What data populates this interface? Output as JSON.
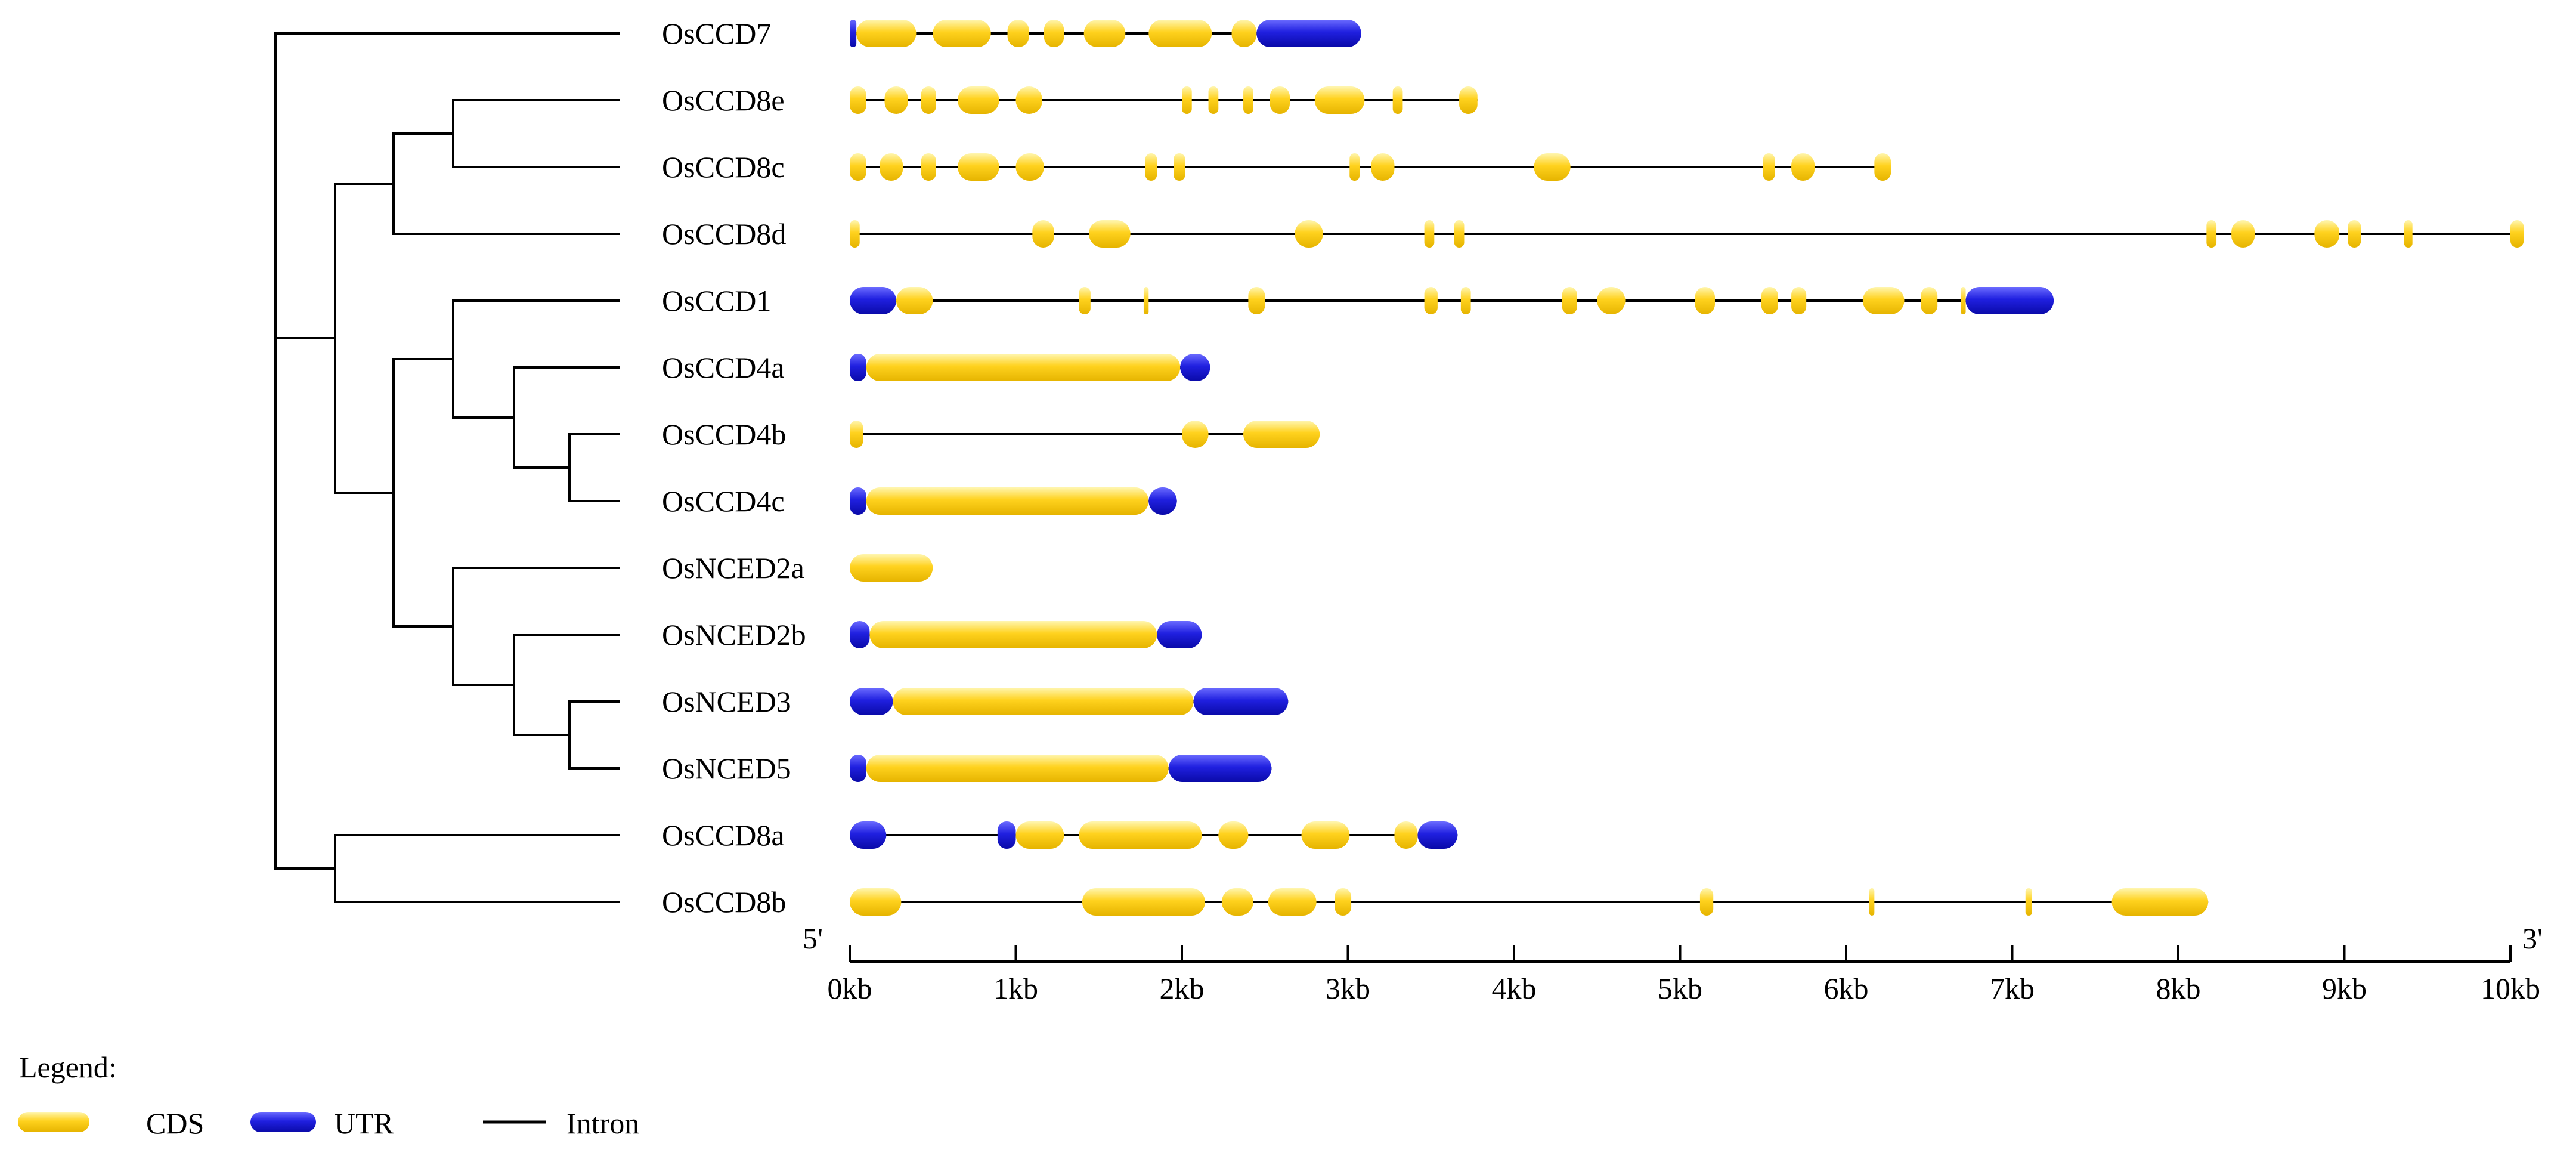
{
  "colors": {
    "cds": "#FFD21E",
    "cds_light": "#FFF6B0",
    "cds_dark": "#E6B400",
    "utr": "#2020E0",
    "utr_light": "#6B6BFF",
    "utr_dark": "#0A0AA8",
    "line": "#000000"
  },
  "axis": {
    "left_end": "5'",
    "right_end": "3'",
    "ticks": [
      "0kb",
      "1kb",
      "2kb",
      "3kb",
      "4kb",
      "5kb",
      "6kb",
      "7kb",
      "8kb",
      "9kb",
      "10kb"
    ],
    "max_kb": 10.1
  },
  "legend": {
    "title": "Legend:",
    "items": [
      {
        "label": "CDS",
        "kind": "cds"
      },
      {
        "label": "UTR",
        "kind": "utr"
      },
      {
        "label": "Intron",
        "kind": "intron"
      }
    ]
  },
  "genes": [
    {
      "name": "OsCCD7",
      "length": 3.08,
      "segments": [
        {
          "t": "u",
          "s": 0.0,
          "e": 0.04
        },
        {
          "t": "c",
          "s": 0.04,
          "e": 0.4
        },
        {
          "t": "c",
          "s": 0.5,
          "e": 0.85
        },
        {
          "t": "c",
          "s": 0.95,
          "e": 1.08
        },
        {
          "t": "c",
          "s": 1.17,
          "e": 1.29
        },
        {
          "t": "c",
          "s": 1.41,
          "e": 1.66
        },
        {
          "t": "c",
          "s": 1.8,
          "e": 2.18
        },
        {
          "t": "c",
          "s": 2.3,
          "e": 2.45
        },
        {
          "t": "u",
          "s": 2.45,
          "e": 3.08
        }
      ]
    },
    {
      "name": "OsCCD8e",
      "length": 3.78,
      "segments": [
        {
          "t": "c",
          "s": 0.0,
          "e": 0.1
        },
        {
          "t": "c",
          "s": 0.21,
          "e": 0.35
        },
        {
          "t": "c",
          "s": 0.43,
          "e": 0.52
        },
        {
          "t": "c",
          "s": 0.65,
          "e": 0.9
        },
        {
          "t": "c",
          "s": 1.0,
          "e": 1.16
        },
        {
          "t": "c",
          "s": 2.0,
          "e": 2.06
        },
        {
          "t": "c",
          "s": 2.16,
          "e": 2.22
        },
        {
          "t": "c",
          "s": 2.37,
          "e": 2.43
        },
        {
          "t": "c",
          "s": 2.53,
          "e": 2.65
        },
        {
          "t": "c",
          "s": 2.8,
          "e": 3.1
        },
        {
          "t": "c",
          "s": 3.27,
          "e": 3.33
        },
        {
          "t": "c",
          "s": 3.67,
          "e": 3.78
        }
      ]
    },
    {
      "name": "OsCCD8c",
      "length": 6.27,
      "segments": [
        {
          "t": "c",
          "s": 0.0,
          "e": 0.1
        },
        {
          "t": "c",
          "s": 0.18,
          "e": 0.32
        },
        {
          "t": "c",
          "s": 0.43,
          "e": 0.52
        },
        {
          "t": "c",
          "s": 0.65,
          "e": 0.9
        },
        {
          "t": "c",
          "s": 1.0,
          "e": 1.17
        },
        {
          "t": "c",
          "s": 1.78,
          "e": 1.85
        },
        {
          "t": "c",
          "s": 1.95,
          "e": 2.02
        },
        {
          "t": "c",
          "s": 3.01,
          "e": 3.07
        },
        {
          "t": "c",
          "s": 3.14,
          "e": 3.28
        },
        {
          "t": "c",
          "s": 4.12,
          "e": 4.34
        },
        {
          "t": "c",
          "s": 5.5,
          "e": 5.57
        },
        {
          "t": "c",
          "s": 5.67,
          "e": 5.81
        },
        {
          "t": "c",
          "s": 6.17,
          "e": 6.27
        }
      ]
    },
    {
      "name": "OsCCD8d",
      "length": 10.08,
      "segments": [
        {
          "t": "c",
          "s": 0.0,
          "e": 0.06
        },
        {
          "t": "c",
          "s": 1.1,
          "e": 1.23
        },
        {
          "t": "c",
          "s": 1.44,
          "e": 1.69
        },
        {
          "t": "c",
          "s": 2.68,
          "e": 2.85
        },
        {
          "t": "c",
          "s": 3.46,
          "e": 3.52
        },
        {
          "t": "c",
          "s": 3.64,
          "e": 3.7
        },
        {
          "t": "c",
          "s": 8.17,
          "e": 8.23
        },
        {
          "t": "c",
          "s": 8.32,
          "e": 8.46
        },
        {
          "t": "c",
          "s": 8.82,
          "e": 8.97
        },
        {
          "t": "c",
          "s": 9.02,
          "e": 9.1
        },
        {
          "t": "c",
          "s": 9.36,
          "e": 9.41
        },
        {
          "t": "c",
          "s": 10.0,
          "e": 10.08
        }
      ]
    },
    {
      "name": "OsCCD1",
      "length": 7.25,
      "segments": [
        {
          "t": "u",
          "s": 0.0,
          "e": 0.28
        },
        {
          "t": "c",
          "s": 0.28,
          "e": 0.5
        },
        {
          "t": "c",
          "s": 1.38,
          "e": 1.45
        },
        {
          "t": "c",
          "s": 1.77,
          "e": 1.8
        },
        {
          "t": "c",
          "s": 2.4,
          "e": 2.5
        },
        {
          "t": "c",
          "s": 3.46,
          "e": 3.54
        },
        {
          "t": "c",
          "s": 3.68,
          "e": 3.74
        },
        {
          "t": "c",
          "s": 4.29,
          "e": 4.38
        },
        {
          "t": "c",
          "s": 4.5,
          "e": 4.67
        },
        {
          "t": "c",
          "s": 5.09,
          "e": 5.21
        },
        {
          "t": "c",
          "s": 5.49,
          "e": 5.59
        },
        {
          "t": "c",
          "s": 5.67,
          "e": 5.76
        },
        {
          "t": "c",
          "s": 6.1,
          "e": 6.35
        },
        {
          "t": "c",
          "s": 6.45,
          "e": 6.55
        },
        {
          "t": "c",
          "s": 6.69,
          "e": 6.72
        },
        {
          "t": "u",
          "s": 6.72,
          "e": 7.25
        }
      ]
    },
    {
      "name": "OsCCD4a",
      "length": 2.17,
      "segments": [
        {
          "t": "u",
          "s": 0.0,
          "e": 0.1
        },
        {
          "t": "c",
          "s": 0.1,
          "e": 1.99
        },
        {
          "t": "u",
          "s": 1.99,
          "e": 2.17
        }
      ]
    },
    {
      "name": "OsCCD4b",
      "length": 2.83,
      "segments": [
        {
          "t": "c",
          "s": 0.0,
          "e": 0.08
        },
        {
          "t": "c",
          "s": 2.0,
          "e": 2.16
        },
        {
          "t": "c",
          "s": 2.37,
          "e": 2.83
        }
      ]
    },
    {
      "name": "OsCCD4c",
      "length": 1.97,
      "segments": [
        {
          "t": "u",
          "s": 0.0,
          "e": 0.1
        },
        {
          "t": "c",
          "s": 0.1,
          "e": 1.8
        },
        {
          "t": "u",
          "s": 1.8,
          "e": 1.97
        }
      ]
    },
    {
      "name": "OsNCED2a",
      "length": 0.5,
      "segments": [
        {
          "t": "c",
          "s": 0.0,
          "e": 0.5
        }
      ]
    },
    {
      "name": "OsNCED2b",
      "length": 2.12,
      "segments": [
        {
          "t": "u",
          "s": 0.0,
          "e": 0.12
        },
        {
          "t": "c",
          "s": 0.12,
          "e": 1.85
        },
        {
          "t": "u",
          "s": 1.85,
          "e": 2.12
        }
      ]
    },
    {
      "name": "OsNCED3",
      "length": 2.64,
      "segments": [
        {
          "t": "u",
          "s": 0.0,
          "e": 0.26
        },
        {
          "t": "c",
          "s": 0.26,
          "e": 2.07
        },
        {
          "t": "u",
          "s": 2.07,
          "e": 2.64
        }
      ]
    },
    {
      "name": "OsNCED5",
      "length": 2.54,
      "segments": [
        {
          "t": "u",
          "s": 0.0,
          "e": 0.1
        },
        {
          "t": "c",
          "s": 0.1,
          "e": 1.92
        },
        {
          "t": "u",
          "s": 1.92,
          "e": 2.54
        }
      ]
    },
    {
      "name": "OsCCD8a",
      "length": 3.66,
      "segments": [
        {
          "t": "u",
          "s": 0.0,
          "e": 0.22
        },
        {
          "t": "u",
          "s": 0.89,
          "e": 1.0
        },
        {
          "t": "c",
          "s": 1.0,
          "e": 1.29
        },
        {
          "t": "c",
          "s": 1.38,
          "e": 2.12
        },
        {
          "t": "c",
          "s": 2.22,
          "e": 2.4
        },
        {
          "t": "c",
          "s": 2.72,
          "e": 3.01
        },
        {
          "t": "c",
          "s": 3.28,
          "e": 3.42
        },
        {
          "t": "u",
          "s": 3.42,
          "e": 3.66
        }
      ]
    },
    {
      "name": "OsCCD8b",
      "length": 8.18,
      "segments": [
        {
          "t": "c",
          "s": 0.0,
          "e": 0.31
        },
        {
          "t": "c",
          "s": 1.4,
          "e": 2.14
        },
        {
          "t": "c",
          "s": 2.24,
          "e": 2.43
        },
        {
          "t": "c",
          "s": 2.52,
          "e": 2.81
        },
        {
          "t": "c",
          "s": 2.92,
          "e": 3.02
        },
        {
          "t": "c",
          "s": 5.12,
          "e": 5.2
        },
        {
          "t": "c",
          "s": 6.14,
          "e": 6.17
        },
        {
          "t": "c",
          "s": 7.08,
          "e": 7.12
        },
        {
          "t": "c",
          "s": 7.6,
          "e": 8.18
        }
      ]
    }
  ],
  "tree": {
    "leaves": [
      0,
      1,
      2,
      3,
      4,
      5,
      6,
      7,
      8,
      9,
      10,
      11,
      12,
      13
    ],
    "nodes": [
      {
        "id": "n_8ec",
        "children": [
          {
            "leaf": 1
          },
          {
            "leaf": 2
          }
        ],
        "depth": 3
      },
      {
        "id": "n_8ecd",
        "children": [
          {
            "node": "n_8ec"
          },
          {
            "leaf": 3
          }
        ],
        "depth": 2
      },
      {
        "id": "n_4bc",
        "children": [
          {
            "leaf": 6
          },
          {
            "leaf": 7
          }
        ],
        "depth": 5
      },
      {
        "id": "n_4abc",
        "children": [
          {
            "leaf": 5
          },
          {
            "node": "n_4bc"
          }
        ],
        "depth": 4
      },
      {
        "id": "n_1_4",
        "children": [
          {
            "leaf": 4
          },
          {
            "node": "n_4abc"
          }
        ],
        "depth": 3
      },
      {
        "id": "n_n35",
        "children": [
          {
            "leaf": 10
          },
          {
            "leaf": 11
          }
        ],
        "depth": 5
      },
      {
        "id": "n_n2b35",
        "children": [
          {
            "leaf": 9
          },
          {
            "node": "n_n35"
          }
        ],
        "depth": 4
      },
      {
        "id": "n_nced",
        "children": [
          {
            "leaf": 8
          },
          {
            "node": "n_n2b35"
          }
        ],
        "depth": 3
      },
      {
        "id": "n_ccd_nced",
        "children": [
          {
            "node": "n_1_4"
          },
          {
            "node": "n_nced"
          }
        ],
        "depth": 2
      },
      {
        "id": "n_mid",
        "children": [
          {
            "node": "n_8ecd"
          },
          {
            "node": "n_ccd_nced"
          }
        ],
        "depth": 1
      },
      {
        "id": "n_8ab",
        "children": [
          {
            "leaf": 12
          },
          {
            "leaf": 13
          }
        ],
        "depth": 1
      },
      {
        "id": "n_root",
        "children": [
          {
            "leaf": 0
          },
          {
            "node": "n_mid"
          },
          {
            "node": "n_8ab"
          }
        ],
        "depth": 0
      }
    ]
  }
}
